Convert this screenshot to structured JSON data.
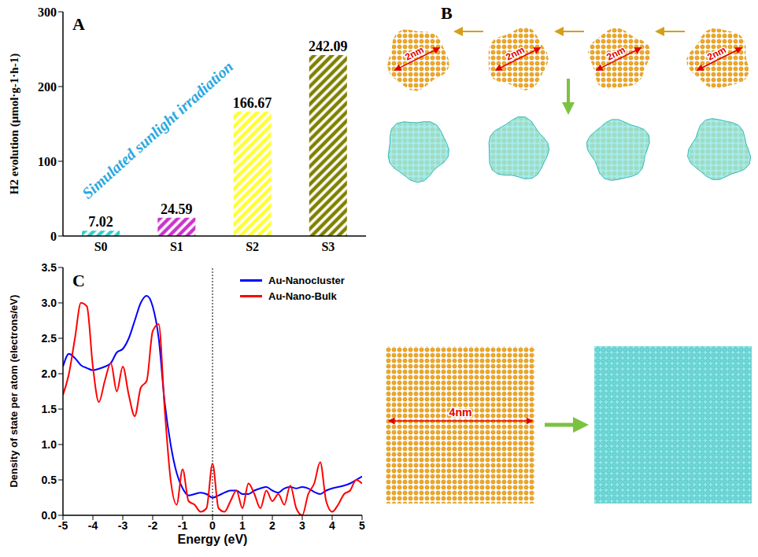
{
  "chart_data": [
    {
      "panel": "A",
      "type": "bar",
      "categories": [
        "S0",
        "S1",
        "S2",
        "S3"
      ],
      "values": [
        7.02,
        24.59,
        166.67,
        242.09
      ],
      "colors": [
        "#33cccc",
        "#cc33cc",
        "#ffff33",
        "#808000"
      ],
      "ylabel": "H2 evolution (μmol·g-1·h-1)",
      "ylim": [
        0,
        300
      ],
      "yticks": [
        0,
        100,
        200,
        300
      ],
      "data_labels": true,
      "annotation": "Simulated sunlight irradiation",
      "grid": false
    },
    {
      "panel": "C",
      "type": "line",
      "x": [
        -5,
        -4.8,
        -4.6,
        -4.4,
        -4.2,
        -4,
        -3.8,
        -3.6,
        -3.4,
        -3.2,
        -3,
        -2.8,
        -2.6,
        -2.4,
        -2.2,
        -2,
        -1.8,
        -1.6,
        -1.4,
        -1.2,
        -1,
        -0.8,
        -0.6,
        -0.4,
        -0.2,
        0,
        0.2,
        0.4,
        0.6,
        0.8,
        1,
        1.2,
        1.4,
        1.6,
        1.8,
        2,
        2.2,
        2.4,
        2.6,
        2.8,
        3,
        3.2,
        3.4,
        3.6,
        3.8,
        4,
        4.2,
        4.4,
        4.6,
        4.8,
        5
      ],
      "series": [
        {
          "name": "Au-Nanocluster",
          "color": "#0000ff",
          "values": [
            2.1,
            2.28,
            2.22,
            2.12,
            2.08,
            2.05,
            2.07,
            2.1,
            2.15,
            2.3,
            2.35,
            2.5,
            2.75,
            3.0,
            3.1,
            2.95,
            2.5,
            1.6,
            1.0,
            0.6,
            0.38,
            0.28,
            0.3,
            0.32,
            0.3,
            0.25,
            0.28,
            0.32,
            0.35,
            0.35,
            0.3,
            0.3,
            0.35,
            0.38,
            0.4,
            0.35,
            0.32,
            0.38,
            0.4,
            0.38,
            0.4,
            0.38,
            0.33,
            0.3,
            0.35,
            0.38,
            0.4,
            0.42,
            0.45,
            0.5,
            0.55
          ]
        },
        {
          "name": "Au-Nano-Bulk",
          "color": "#ff0000",
          "values": [
            1.7,
            2.0,
            2.5,
            3.0,
            2.95,
            2.1,
            1.6,
            1.9,
            2.15,
            1.75,
            2.1,
            1.7,
            1.4,
            1.8,
            1.9,
            2.6,
            2.7,
            1.5,
            0.5,
            0.15,
            0.65,
            0.2,
            0.15,
            0.05,
            0.1,
            0.73,
            0.1,
            0.05,
            0.2,
            0.35,
            0.1,
            0.45,
            0.3,
            0.1,
            0.35,
            0.2,
            0.3,
            0.15,
            0.42,
            0.1,
            0.0,
            0.3,
            0.45,
            0.75,
            0.2,
            0.05,
            0.15,
            0.3,
            0.35,
            0.5,
            0.45
          ]
        }
      ],
      "xlabel": "Energy (eV)",
      "ylabel": "Density of state per atom (electrons/eV)",
      "xlim": [
        -5,
        5
      ],
      "xticks": [
        -5,
        -4,
        -3,
        -2,
        -1,
        0,
        1,
        2,
        3,
        4,
        5
      ],
      "ylim": [
        0,
        3.5
      ],
      "yticks": [
        {
          "value": 0,
          "label": "0.0"
        },
        {
          "value": 0.5,
          "label": "0.5"
        },
        {
          "value": 1,
          "label": "1.0"
        },
        {
          "value": 1.5,
          "label": "1.5"
        },
        {
          "value": 2,
          "label": "2.0"
        },
        {
          "value": 2.5,
          "label": "2.5"
        },
        {
          "value": 3,
          "label": "3.0"
        },
        {
          "value": 3.5,
          "label": "3.5"
        }
      ],
      "legend": "upper right",
      "reference_x": 0
    }
  ],
  "diagram": {
    "panel": "B",
    "cluster_labels": [
      "2nm",
      "2nm",
      "2nm",
      "2nm"
    ],
    "bulk_label": "4nm"
  }
}
